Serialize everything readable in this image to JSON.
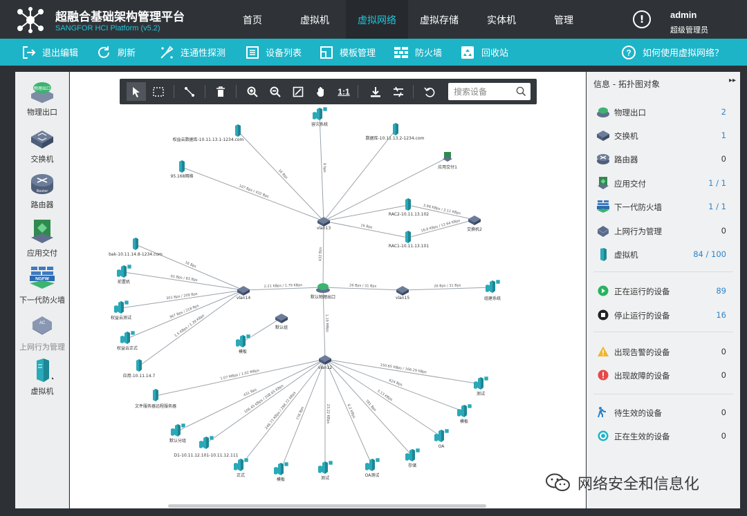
{
  "header": {
    "title": "超融合基础架构管理平台",
    "subtitle": "SANGFOR HCI Platform (v5.2)",
    "nav": [
      "首页",
      "虚拟机",
      "虚拟网络",
      "虚拟存储",
      "实体机",
      "管理"
    ],
    "active_nav": "虚拟网络",
    "user": {
      "name": "admin",
      "role": "超级管理员"
    },
    "alert_glyph": "!"
  },
  "toolbar": {
    "items": [
      {
        "label": "退出编辑",
        "icon": "exit-icon"
      },
      {
        "label": "刷新",
        "icon": "refresh-icon"
      },
      {
        "label": "连通性探测",
        "icon": "probe-icon"
      },
      {
        "label": "设备列表",
        "icon": "list-icon"
      },
      {
        "label": "模板管理",
        "icon": "template-icon"
      },
      {
        "label": "防火墙",
        "icon": "firewall-icon"
      },
      {
        "label": "回收站",
        "icon": "recycle-icon"
      }
    ],
    "help": "如何使用虚拟网络？"
  },
  "palette": {
    "items": [
      {
        "label": "物理出口",
        "icon": "physical-exit-icon",
        "badge": "物理出口"
      },
      {
        "label": "交换机",
        "icon": "switch-icon"
      },
      {
        "label": "路由器",
        "icon": "router-icon",
        "badge": "Router"
      },
      {
        "label": "应用交付",
        "icon": "app-delivery-icon"
      },
      {
        "label": "下一代防火墙",
        "icon": "ngfw-icon",
        "badge": "NGFW"
      },
      {
        "label": "上网行为管理",
        "icon": "behavior-mgmt-icon",
        "badge": "AC"
      },
      {
        "label": "虚拟机",
        "icon": "vm-icon"
      }
    ]
  },
  "canvas_tools": {
    "buttons": [
      {
        "name": "select-tool",
        "icon": "cursor-icon"
      },
      {
        "name": "box-select-tool",
        "icon": "marquee-icon"
      },
      {
        "name": "connect-tool",
        "icon": "link-icon"
      },
      {
        "name": "delete-tool",
        "icon": "trash-icon"
      },
      {
        "name": "zoom-in-tool",
        "icon": "zoom-in-icon"
      },
      {
        "name": "zoom-out-tool",
        "icon": "zoom-out-icon"
      },
      {
        "name": "fit-screen-tool",
        "icon": "fit-icon"
      },
      {
        "name": "pan-tool",
        "icon": "hand-icon"
      },
      {
        "name": "actual-size-tool",
        "icon": "actual-size-icon",
        "text": "1:1"
      },
      {
        "name": "export-tool",
        "icon": "download-icon"
      },
      {
        "name": "layout-tool",
        "icon": "layout-icon"
      },
      {
        "name": "undo-tool",
        "icon": "undo-icon"
      }
    ],
    "search_placeholder": "搜索设备"
  },
  "topology": {
    "nodes": [
      {
        "id": "vlan13",
        "label": "vlan13",
        "type": "switch"
      },
      {
        "id": "vlan14",
        "label": "vlan14",
        "type": "switch"
      },
      {
        "id": "vlan15",
        "label": "vlan15",
        "type": "switch"
      },
      {
        "id": "vlan12",
        "label": "vlan12",
        "type": "switch"
      },
      {
        "id": "exit",
        "label": "默认物理出口",
        "type": "exit"
      },
      {
        "id": "sw2",
        "label": "交换机2",
        "type": "switch"
      },
      {
        "id": "def_net",
        "label": "默认组",
        "type": "switch"
      },
      {
        "id": "n1",
        "label": "容灾系统",
        "type": "vmgroup"
      },
      {
        "id": "n2",
        "label": "权益云数据库-10.11.13.1-1234.com",
        "type": "vm"
      },
      {
        "id": "n3",
        "label": "数据库-10.11.13.2-1234.com",
        "type": "vm"
      },
      {
        "id": "n4",
        "label": "应用交付1",
        "type": "appd"
      },
      {
        "id": "n5",
        "label": "95.168网络",
        "type": "vm"
      },
      {
        "id": "n6",
        "label": "RAC2-10.11.13.102",
        "type": "vm"
      },
      {
        "id": "n7",
        "label": "RAC1-10.11.13.101",
        "type": "vm"
      },
      {
        "id": "n8",
        "label": "bak-10.11.14.8-1234.com",
        "type": "vm"
      },
      {
        "id": "n9",
        "label": "前置机",
        "type": "vmgroup"
      },
      {
        "id": "n10",
        "label": "权益云测试",
        "type": "vmgroup"
      },
      {
        "id": "n11",
        "label": "权益云正式",
        "type": "vmgroup"
      },
      {
        "id": "n12",
        "label": "应用-10.11.14.7",
        "type": "vm"
      },
      {
        "id": "n13",
        "label": "模板",
        "type": "vmgroup"
      },
      {
        "id": "n14",
        "label": "组建系统",
        "type": "vmgroup"
      },
      {
        "id": "n15",
        "label": "文件服务器远程服务器",
        "type": "vm"
      },
      {
        "id": "n16",
        "label": "默认分组",
        "type": "vmgroup"
      },
      {
        "id": "n17",
        "label": "D1-10.11.12.101-10.11.12.111",
        "type": "vmgroup"
      },
      {
        "id": "n18",
        "label": "正式",
        "type": "vmgroup"
      },
      {
        "id": "n19",
        "label": "模板",
        "type": "vmgroup"
      },
      {
        "id": "n20",
        "label": "测试",
        "type": "vmgroup"
      },
      {
        "id": "n21",
        "label": "OA测试",
        "type": "vmgroup"
      },
      {
        "id": "n22",
        "label": "存储",
        "type": "vmgroup"
      },
      {
        "id": "n23",
        "label": "OA",
        "type": "vmgroup"
      },
      {
        "id": "n24",
        "label": "模板",
        "type": "vmgroup"
      },
      {
        "id": "n25",
        "label": "测试",
        "type": "vmgroup"
      }
    ],
    "links": [
      {
        "a": "vlan13",
        "b": "n1",
        "t": "8 bps"
      },
      {
        "a": "vlan13",
        "b": "n2",
        "t": "16 Bps"
      },
      {
        "a": "vlan13",
        "b": "n3",
        "t": ""
      },
      {
        "a": "vlan13",
        "b": "n4",
        "t": ""
      },
      {
        "a": "vlan13",
        "b": "n5",
        "t": "107 Bps / 432 Bps"
      },
      {
        "a": "vlan13",
        "b": "n6",
        "t": ""
      },
      {
        "a": "vlan13",
        "b": "n7",
        "t": "16 Bps"
      },
      {
        "a": "n6",
        "b": "sw2",
        "t": "3.99 KBps / 2.11 KBps"
      },
      {
        "a": "n7",
        "b": "sw2",
        "t": "16.8 KBps / 12.64 KBps"
      },
      {
        "a": "vlan13",
        "b": "exit",
        "t": "432 Bps"
      },
      {
        "a": "vlan14",
        "b": "exit",
        "t": "2.21 KBps / 1.79 KBps"
      },
      {
        "a": "exit",
        "b": "vlan15",
        "t": "26 Bps / 31 Bps"
      },
      {
        "a": "vlan15",
        "b": "n14",
        "t": "26 Bps / 31 Bps"
      },
      {
        "a": "exit",
        "b": "vlan12",
        "t": "1.19 MBps"
      },
      {
        "a": "vlan14",
        "b": "n8",
        "t": "16 Bps"
      },
      {
        "a": "vlan14",
        "b": "n9",
        "t": "61 Bps / 83 Bps"
      },
      {
        "a": "vlan14",
        "b": "n10",
        "t": "301 Bps / 209 Bps"
      },
      {
        "a": "vlan14",
        "b": "n11",
        "t": "367 Bps / 218 Bps"
      },
      {
        "a": "vlan14",
        "b": "n12",
        "t": "1.5 KBps / 1.39 KBps"
      },
      {
        "a": "def_net",
        "b": "n13",
        "t": ""
      },
      {
        "a": "vlan12",
        "b": "n15",
        "t": "1.07 MBps / 1.02 MBps"
      },
      {
        "a": "vlan12",
        "b": "n16",
        "t": "431 Bps"
      },
      {
        "a": "vlan12",
        "b": "n17",
        "t": "106.45 KBps / 208.65 KBps"
      },
      {
        "a": "vlan12",
        "b": "n18",
        "t": "248.73 KBps / 288.72 KBps"
      },
      {
        "a": "vlan12",
        "b": "n19",
        "t": "776 Bps"
      },
      {
        "a": "vlan12",
        "b": "n20",
        "t": "23.22 KBps"
      },
      {
        "a": "vlan12",
        "b": "n21",
        "t": "6.2 KBps"
      },
      {
        "a": "vlan12",
        "b": "n22",
        "t": "781 Bps"
      },
      {
        "a": "vlan12",
        "b": "n23",
        "t": "3.13 KBps"
      },
      {
        "a": "vlan12",
        "b": "n24",
        "t": "624 Bps"
      },
      {
        "a": "vlan12",
        "b": "n25",
        "t": "150.65 KBps / 166.29 KBps"
      }
    ]
  },
  "info_panel": {
    "title": "信息 - 拓扑图对象",
    "collapse_glyph": "▸▸",
    "object_counts": [
      {
        "label": "物理出口",
        "value": "2",
        "icon": "physical-exit-icon",
        "highlight": true
      },
      {
        "label": "交换机",
        "value": "1",
        "icon": "switch-icon",
        "highlight": true
      },
      {
        "label": "路由器",
        "value": "0",
        "icon": "router-icon",
        "highlight": false
      },
      {
        "label": "应用交付",
        "value": "1 / 1",
        "icon": "app-delivery-icon",
        "highlight": true
      },
      {
        "label": "下一代防火墙",
        "value": "1 / 1",
        "icon": "ngfw-icon",
        "highlight": true
      },
      {
        "label": "上网行为管理",
        "value": "0",
        "icon": "behavior-mgmt-icon",
        "highlight": false
      },
      {
        "label": "虚拟机",
        "value": "84 / 100",
        "icon": "vm-icon",
        "highlight": true
      }
    ],
    "run_status": [
      {
        "label": "正在运行的设备",
        "value": "89",
        "icon": "running-icon"
      },
      {
        "label": "停止运行的设备",
        "value": "16",
        "icon": "stopped-icon"
      }
    ],
    "alerts": [
      {
        "label": "出现告警的设备",
        "value": "0",
        "icon": "warning-icon"
      },
      {
        "label": "出现故障的设备",
        "value": "0",
        "icon": "fault-icon"
      }
    ],
    "pending": [
      {
        "label": "待生效的设备",
        "value": "0",
        "icon": "pending-icon"
      },
      {
        "label": "正在生效的设备",
        "value": "0",
        "icon": "applying-icon"
      }
    ]
  },
  "watermark": {
    "text": "网络安全和信息化",
    "icon": "wechat-icon"
  },
  "colors": {
    "accent": "#1db4c8",
    "header": "#2f3338",
    "link_blue": "#2c83c9",
    "device_teal": "#2aa9b8",
    "switch_navy": "#4a5a7a"
  }
}
